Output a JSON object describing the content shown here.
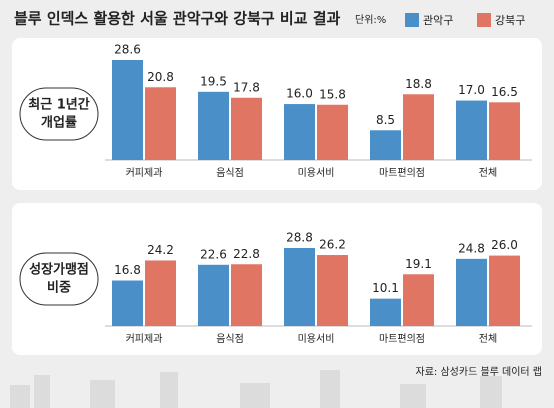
{
  "title": "블루 인덱스 활용한 서울 관악구와 강북구 비교 결과",
  "unit": "단위:%",
  "legend": [
    {
      "name": "관악구",
      "color": "#4a8fc7"
    },
    {
      "name": "강북구",
      "color": "#e07563"
    }
  ],
  "source": "자료: 삼성카드 블루 데이터 랩",
  "chart_data": [
    {
      "type": "bar",
      "title": [
        "최근 1년간",
        "개업률"
      ],
      "categories": [
        "커피제과",
        "음식점",
        "미용서비",
        "마트편의점",
        "전체"
      ],
      "series": [
        {
          "values": [
            28.6,
            19.5,
            16,
            8.5,
            17
          ],
          "value_labels": [
            "28.6",
            "19.5",
            "16.0",
            "8.5",
            "17.0"
          ]
        },
        {
          "values": [
            20.8,
            17.8,
            15.8,
            18.8,
            16.5
          ],
          "value_labels": [
            "20.8",
            "17.8",
            "15.8",
            "18.8",
            "16.5"
          ]
        }
      ]
    },
    {
      "type": "bar",
      "title": [
        "성장가맹점",
        "비중"
      ],
      "categories": [
        "커피제과",
        "음식점",
        "미용서비",
        "마트편의점",
        "전체"
      ],
      "series": [
        {
          "values": [
            16.8,
            22.6,
            28.8,
            10.1,
            24.8
          ],
          "value_labels": [
            "16.8",
            "22.6",
            "28.8",
            "10.1",
            "24.8"
          ]
        },
        {
          "values": [
            24.2,
            22.8,
            26.2,
            19.1,
            26
          ],
          "value_labels": [
            "24.2",
            "22.8",
            "26.2",
            "19.1",
            "26.0"
          ]
        }
      ]
    }
  ]
}
